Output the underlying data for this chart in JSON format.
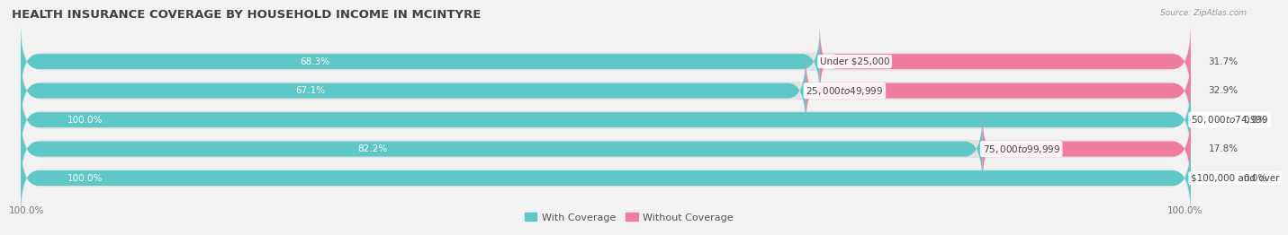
{
  "title": "HEALTH INSURANCE COVERAGE BY HOUSEHOLD INCOME IN MCINTYRE",
  "source": "Source: ZipAtlas.com",
  "categories": [
    "Under $25,000",
    "$25,000 to $49,999",
    "$50,000 to $74,999",
    "$75,000 to $99,999",
    "$100,000 and over"
  ],
  "with_coverage": [
    68.3,
    67.1,
    100.0,
    82.2,
    100.0
  ],
  "without_coverage": [
    31.7,
    32.9,
    0.0,
    17.8,
    0.0
  ],
  "color_with": "#5ec8c8",
  "color_without": "#f07ca0",
  "color_without_light": "#f5afc5",
  "bg_color": "#f2f2f2",
  "bar_bg_color": "#e2e2e2",
  "title_fontsize": 9.5,
  "label_fontsize": 7.5,
  "tick_fontsize": 7.5,
  "legend_fontsize": 8,
  "bar_height": 0.62,
  "x_left_label": "100.0%",
  "x_right_label": "100.0%",
  "total_width": 100
}
